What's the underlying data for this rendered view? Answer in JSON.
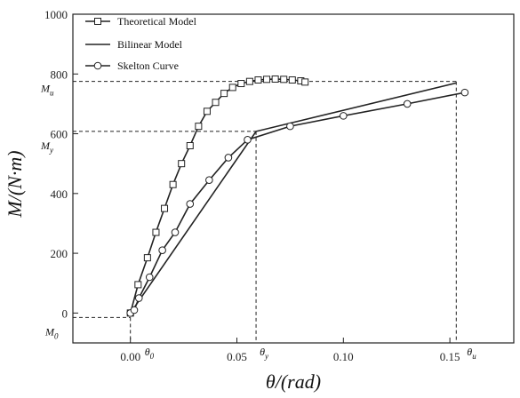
{
  "chart_data": {
    "type": "line",
    "title": "",
    "xlabel": "θ/(rad)",
    "ylabel": "M/(N·m)",
    "xlim": [
      -0.027,
      0.18
    ],
    "ylim": [
      -100,
      1000
    ],
    "xticks": [
      0.0,
      0.05,
      0.1,
      0.15
    ],
    "xtick_labels": [
      "0.00",
      "0.05",
      "0.10",
      "0.15"
    ],
    "yticks": [
      0,
      200,
      400,
      600,
      800,
      1000
    ],
    "ytick_labels": [
      "0",
      "200",
      "400",
      "600",
      "800",
      "1000"
    ],
    "grid": false,
    "legend_position": "top-left",
    "series": [
      {
        "name": "Theoretical Model",
        "marker": "square",
        "points": [
          [
            0.0,
            0
          ],
          [
            0.0036,
            95
          ],
          [
            0.008,
            185
          ],
          [
            0.012,
            270
          ],
          [
            0.016,
            350
          ],
          [
            0.02,
            430
          ],
          [
            0.024,
            500
          ],
          [
            0.028,
            560
          ],
          [
            0.032,
            625
          ],
          [
            0.036,
            675
          ],
          [
            0.04,
            705
          ],
          [
            0.044,
            735
          ],
          [
            0.048,
            755
          ],
          [
            0.052,
            768
          ],
          [
            0.056,
            775
          ],
          [
            0.06,
            780
          ],
          [
            0.064,
            782
          ],
          [
            0.068,
            783
          ],
          [
            0.072,
            782
          ],
          [
            0.076,
            780
          ],
          [
            0.08,
            777
          ],
          [
            0.082,
            773
          ]
        ]
      },
      {
        "name": "Bilinear Model",
        "marker": "none",
        "points": [
          [
            0.0,
            0
          ],
          [
            0.059,
            608
          ],
          [
            0.153,
            770
          ]
        ]
      },
      {
        "name": "Skelton Curve",
        "marker": "circle",
        "points": [
          [
            0.0,
            0
          ],
          [
            0.0018,
            10
          ],
          [
            0.004,
            50
          ],
          [
            0.009,
            120
          ],
          [
            0.015,
            210
          ],
          [
            0.021,
            270
          ],
          [
            0.028,
            365
          ],
          [
            0.037,
            445
          ],
          [
            0.046,
            520
          ],
          [
            0.055,
            580
          ],
          [
            0.075,
            625
          ],
          [
            0.1,
            660
          ],
          [
            0.13,
            700
          ],
          [
            0.157,
            738
          ]
        ]
      }
    ],
    "reference_marks": [
      {
        "label": "M",
        "sub": "u",
        "y": 775
      },
      {
        "label": "M",
        "sub": "y",
        "y": 608
      },
      {
        "label": "M",
        "sub": "0",
        "y": -15
      }
    ],
    "x_marks": [
      {
        "label": "θ",
        "sub": "0",
        "x": 0.0
      },
      {
        "label": "θ",
        "sub": "y",
        "x": 0.059
      },
      {
        "label": "θ",
        "sub": "u",
        "x": 0.153
      }
    ]
  }
}
